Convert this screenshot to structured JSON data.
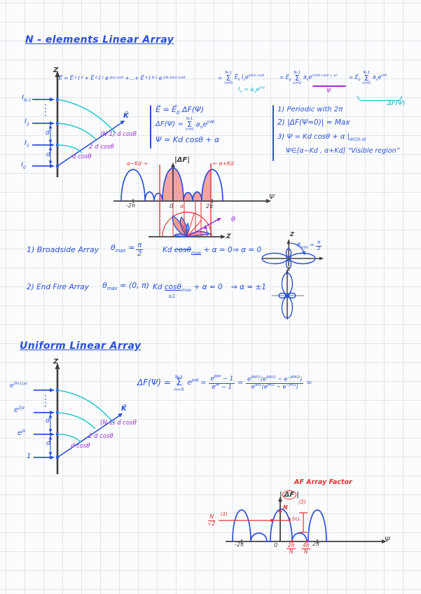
{
  "colors": {
    "blue_ink": "#2b50d8",
    "cyan_ink": "#18b6c6",
    "purple_ink": "#9c2fd8",
    "red_ink": "#e23333",
    "black_ink": "#3f3f3f"
  },
  "math": {
    "sigma": "Σ",
    "sum_top": "N-1",
    "sum_bot": "n=0"
  },
  "sec1": {
    "title": "N - elements  Linear Array",
    "formula": {
      "seg1": "E⃗ = E⃗_{0}I_{0} + E⃗_{0}I_{1}e^{jKd cosθ} +…+ E⃗_{0}I_{N-1}e^{j(N-1)Kd cosθ}",
      "seg2": "=",
      "seg2b": "E⃗_{0} I_{n}e^{jnKd cosθ}",
      "seg3": "= E⃗_{0}",
      "seg3b": "a_{n}e^{jn(Kd cosθ + α)}",
      "seg4": "= E⃗_{0}",
      "seg4b": "a_{n}e^{jnΨ}",
      "psi": "Ψ",
      "af": "ΔF(Ψ)",
      "note": "I_{n} = a_{n}e^{jnα}"
    },
    "diagram": {
      "z": "Z",
      "k": "K̂",
      "e1": "I_{N-1}",
      "e2": "I_{2}",
      "e3": "I_{1}",
      "e4": "I_{0}",
      "d1": "d",
      "d2": "d",
      "p1": "(N-1) d cosθ",
      "p2": "2 d cosθ",
      "p3": "d cosθ"
    },
    "box": {
      "l1": "E⃗ = E⃗_{0} ΔF(Ψ)",
      "l2a": "ΔF(Ψ) =",
      "l2b": "a_{n}e^{jnΨ}",
      "l3": "Ψ = Kd cosθ + α"
    },
    "notes": {
      "n1": "1) Periodic with 2π",
      "n2": "2) |ΔF(Ψ=0)| = Max",
      "n3": "3) Ψ = Kd cosθ + α |_{θ∈[0,π]}",
      "n4": "Ψ∈[α−Kd , α+Kd]  “Visible region”"
    },
    "plot": {
      "ylabel": "|ΔF|",
      "xlabel": "Ψ",
      "t_m2pi": "-2π",
      "t_0": "0",
      "t_a": "α",
      "t_2pi": "2π",
      "left": "α−Kd →",
      "right": "← α+Kd",
      "theta": "θ",
      "z": "Z"
    },
    "broadside": {
      "head": "1) Broadside Array",
      "eq1": "θ_{max} =",
      "fr_n": "π",
      "fr_d": "2",
      "eq2a": "Kd ",
      "eq2b": "cosθ_{max}",
      "eq2c": " + α = 0",
      "eq3": "⇒ α = 0"
    },
    "endfire": {
      "head": "2) End Fire Array",
      "eq1": "θ_{max} = (0, π)",
      "eq2a": "Kd ",
      "eq2b": "cosθ_{max}",
      "sub": "±1",
      "eq2c": " + α = 0",
      "eq3": "⇒ α = ±1"
    },
    "mini": {
      "z": "Z",
      "label": "θ_{max} =",
      "fr_n": "π",
      "fr_d": "2",
      "z2": "z"
    }
  },
  "sec2": {
    "title": "Uniform Linear Array",
    "diagram": {
      "z": "Z",
      "k": "K̂",
      "e1": "e^{(N-1)jα}",
      "e2": "e^{2jα}",
      "e3": "e^{jα}",
      "e4": "1",
      "d1": "d",
      "d2": "d",
      "p1": "(N-1) d cosθ",
      "p2": "2 d cosθ",
      "p3": "d cosθ"
    },
    "formula": {
      "lhs": "ΔF(Ψ) =",
      "t1": "e^{jnΨ} =",
      "f1n": "e^{jNΨ} − 1",
      "f1d": "e^{jΨ} − 1",
      "eq": "=",
      "f2n": "e^{jNΨ/2}(e^{jNΨ/2} − e^{−jNΨ/2})",
      "f2d": "e^{jΨ/2}(e^{jΨ/2} − e^{−jΨ/2})",
      "tail": "="
    },
    "plot": {
      "title": "AF  Array Factor",
      "yl": "|",
      "yc": "ΔF",
      "yr": "|",
      "xlabel": "Ψ",
      "t_m2pi": "-2π",
      "t_0": "0",
      "t1n": "2π",
      "t1d": "N",
      "t2n": "4π",
      "t2d": "N",
      "t_2pi": "2π",
      "n_peak": "N",
      "a1": "(1)",
      "hp_n": "N",
      "hp_d": "√2",
      "a3": "(3)",
      "sll": "SLL"
    }
  }
}
